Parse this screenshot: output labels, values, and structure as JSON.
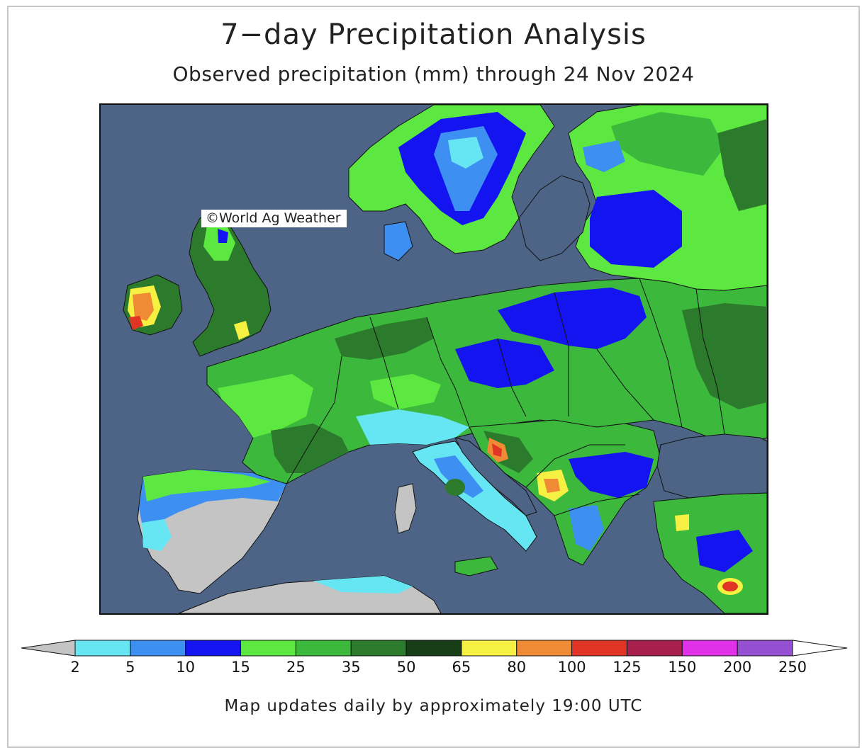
{
  "title": "7−day Precipitation Analysis",
  "subtitle": "Observed precipitation (mm) through 24 Nov 2024",
  "credit": "World Ag Weather",
  "credit_icon": "copyright-icon",
  "footer": "Map updates daily by approximately 19:00 UTC",
  "map": {
    "region": "Europe",
    "ocean_color": "#4d6486",
    "no_data_color": "#c4c4c4"
  },
  "legend": {
    "unit": "mm",
    "under_color": "#c4c4c4",
    "over_color": "#ffffff",
    "bins": [
      {
        "color": "#66e6f2"
      },
      {
        "color": "#3d8ff2"
      },
      {
        "color": "#1414f0"
      },
      {
        "color": "#5ce840"
      },
      {
        "color": "#3cb83c"
      },
      {
        "color": "#2c7a2c"
      },
      {
        "color": "#163d16"
      },
      {
        "color": "#f5f041"
      },
      {
        "color": "#ef8a35"
      },
      {
        "color": "#e03424"
      },
      {
        "color": "#a81f4e"
      },
      {
        "color": "#e030e8"
      },
      {
        "color": "#9450d0"
      }
    ],
    "ticks": [
      "2",
      "5",
      "10",
      "15",
      "25",
      "35",
      "50",
      "65",
      "80",
      "100",
      "125",
      "150",
      "200",
      "250"
    ]
  }
}
